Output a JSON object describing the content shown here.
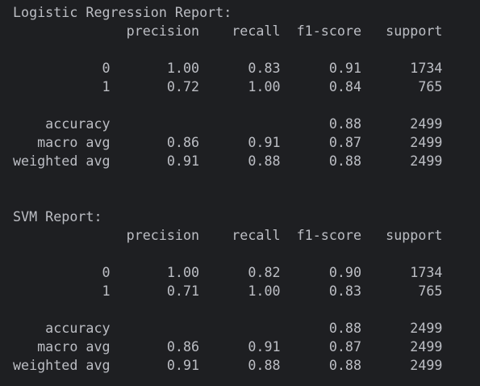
{
  "reports": [
    {
      "title": "Logistic Regression Report:",
      "header": [
        "precision",
        "recall",
        "f1-score",
        "support"
      ],
      "class_rows": [
        {
          "label": "0",
          "precision": "1.00",
          "recall": "0.83",
          "f1": "0.91",
          "support": "1734"
        },
        {
          "label": "1",
          "precision": "0.72",
          "recall": "1.00",
          "f1": "0.84",
          "support": "765"
        }
      ],
      "accuracy": {
        "label": "accuracy",
        "f1": "0.88",
        "support": "2499"
      },
      "avg_rows": [
        {
          "label": "macro avg",
          "precision": "0.86",
          "recall": "0.91",
          "f1": "0.87",
          "support": "2499"
        },
        {
          "label": "weighted avg",
          "precision": "0.91",
          "recall": "0.88",
          "f1": "0.88",
          "support": "2499"
        }
      ]
    },
    {
      "title": "SVM Report:",
      "header": [
        "precision",
        "recall",
        "f1-score",
        "support"
      ],
      "class_rows": [
        {
          "label": "0",
          "precision": "1.00",
          "recall": "0.82",
          "f1": "0.90",
          "support": "1734"
        },
        {
          "label": "1",
          "precision": "0.71",
          "recall": "1.00",
          "f1": "0.83",
          "support": "765"
        }
      ],
      "accuracy": {
        "label": "accuracy",
        "f1": "0.88",
        "support": "2499"
      },
      "avg_rows": [
        {
          "label": "macro avg",
          "precision": "0.86",
          "recall": "0.91",
          "f1": "0.87",
          "support": "2499"
        },
        {
          "label": "weighted avg",
          "precision": "0.91",
          "recall": "0.88",
          "f1": "0.88",
          "support": "2499"
        }
      ]
    }
  ]
}
